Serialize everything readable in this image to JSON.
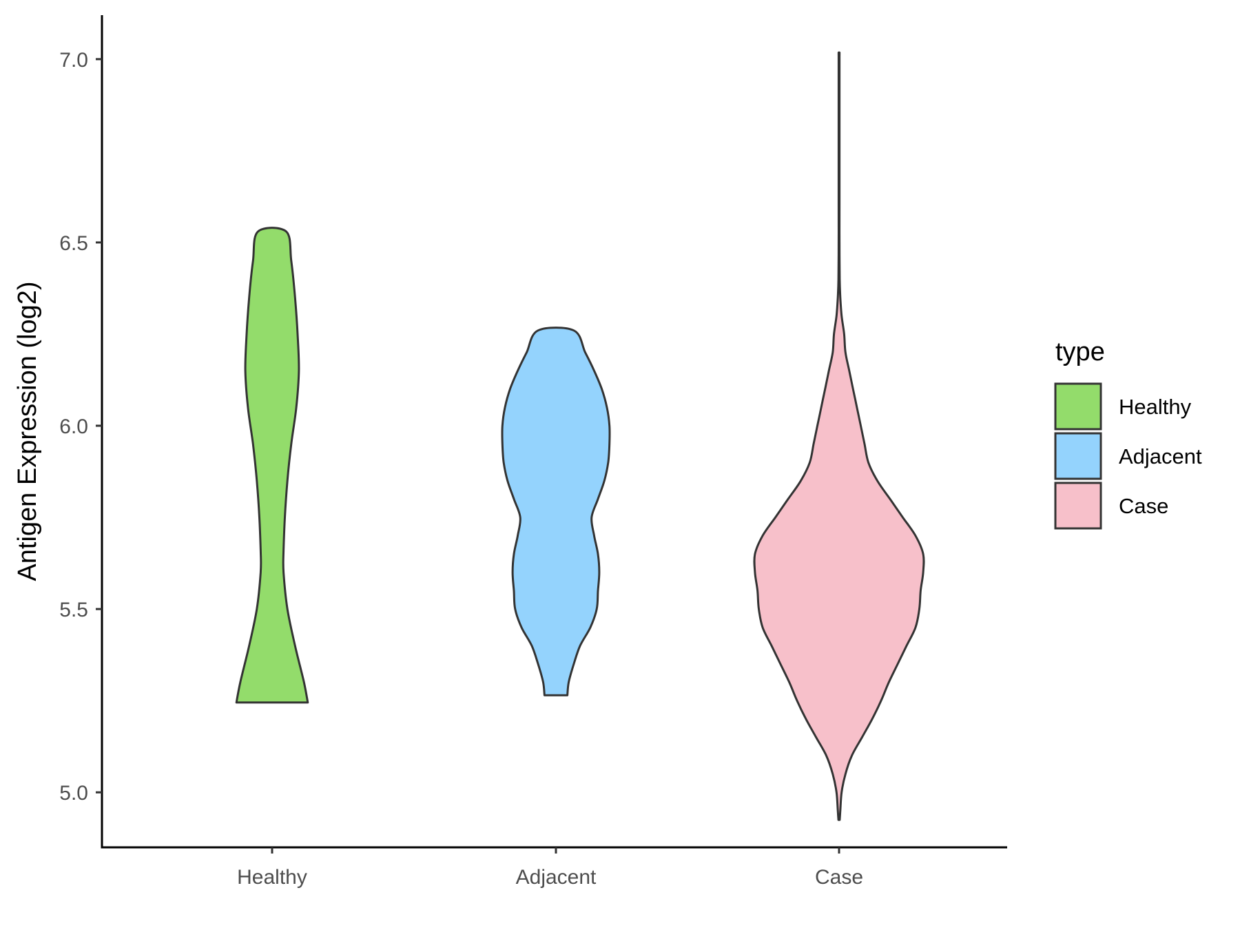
{
  "chart_data": {
    "type": "violin",
    "title": "",
    "xlabel": "",
    "ylabel": "Antigen Expression (log2)",
    "ylim": [
      4.85,
      7.12
    ],
    "yticks": [
      "5.0",
      "5.5",
      "6.0",
      "6.5",
      "7.0"
    ],
    "categories": [
      "Healthy",
      "Adjacent",
      "Case"
    ],
    "legend": {
      "title": "type",
      "position": "right",
      "entries": [
        "Healthy",
        "Adjacent",
        "Case"
      ]
    },
    "grid": false,
    "colors": {
      "Healthy": "#93dc6b",
      "Adjacent": "#94d3fd",
      "Case": "#f7c0ca",
      "outline": "#333333"
    },
    "series": [
      {
        "name": "Healthy",
        "min": 5.245,
        "max": 6.53,
        "density_profile": [
          [
            5.245,
            0.28
          ],
          [
            5.3,
            0.25
          ],
          [
            5.4,
            0.18
          ],
          [
            5.5,
            0.12
          ],
          [
            5.6,
            0.09
          ],
          [
            5.66,
            0.09
          ],
          [
            5.75,
            0.1
          ],
          [
            5.85,
            0.12
          ],
          [
            5.95,
            0.15
          ],
          [
            6.05,
            0.19
          ],
          [
            6.15,
            0.21
          ],
          [
            6.25,
            0.2
          ],
          [
            6.35,
            0.18
          ],
          [
            6.45,
            0.15
          ],
          [
            6.53,
            0.11
          ]
        ]
      },
      {
        "name": "Adjacent",
        "min": 5.265,
        "max": 6.26,
        "density_profile": [
          [
            5.265,
            0.09
          ],
          [
            5.3,
            0.1
          ],
          [
            5.35,
            0.14
          ],
          [
            5.4,
            0.19
          ],
          [
            5.45,
            0.27
          ],
          [
            5.5,
            0.32
          ],
          [
            5.55,
            0.33
          ],
          [
            5.6,
            0.34
          ],
          [
            5.65,
            0.33
          ],
          [
            5.7,
            0.3
          ],
          [
            5.75,
            0.28
          ],
          [
            5.8,
            0.33
          ],
          [
            5.85,
            0.38
          ],
          [
            5.9,
            0.41
          ],
          [
            5.95,
            0.42
          ],
          [
            6.0,
            0.42
          ],
          [
            6.05,
            0.4
          ],
          [
            6.1,
            0.36
          ],
          [
            6.15,
            0.3
          ],
          [
            6.2,
            0.23
          ],
          [
            6.26,
            0.14
          ]
        ]
      },
      {
        "name": "Case",
        "min": 4.925,
        "max": 7.01,
        "density_profile": [
          [
            4.925,
            0.005
          ],
          [
            4.95,
            0.01
          ],
          [
            5.0,
            0.02
          ],
          [
            5.05,
            0.05
          ],
          [
            5.1,
            0.1
          ],
          [
            5.15,
            0.18
          ],
          [
            5.2,
            0.26
          ],
          [
            5.25,
            0.33
          ],
          [
            5.3,
            0.39
          ],
          [
            5.35,
            0.46
          ],
          [
            5.4,
            0.53
          ],
          [
            5.45,
            0.6
          ],
          [
            5.5,
            0.63
          ],
          [
            5.55,
            0.64
          ],
          [
            5.6,
            0.66
          ],
          [
            5.65,
            0.66
          ],
          [
            5.7,
            0.6
          ],
          [
            5.75,
            0.5
          ],
          [
            5.8,
            0.4
          ],
          [
            5.85,
            0.3
          ],
          [
            5.9,
            0.23
          ],
          [
            5.95,
            0.2
          ],
          [
            6.0,
            0.17
          ],
          [
            6.05,
            0.14
          ],
          [
            6.1,
            0.11
          ],
          [
            6.15,
            0.08
          ],
          [
            6.2,
            0.05
          ],
          [
            6.25,
            0.04
          ],
          [
            6.3,
            0.02
          ],
          [
            6.35,
            0.01
          ],
          [
            6.4,
            0.005
          ],
          [
            6.5,
            0.003
          ],
          [
            6.6,
            0.003
          ],
          [
            6.8,
            0.003
          ],
          [
            7.0,
            0.003
          ],
          [
            7.01,
            0.003
          ]
        ]
      }
    ]
  }
}
